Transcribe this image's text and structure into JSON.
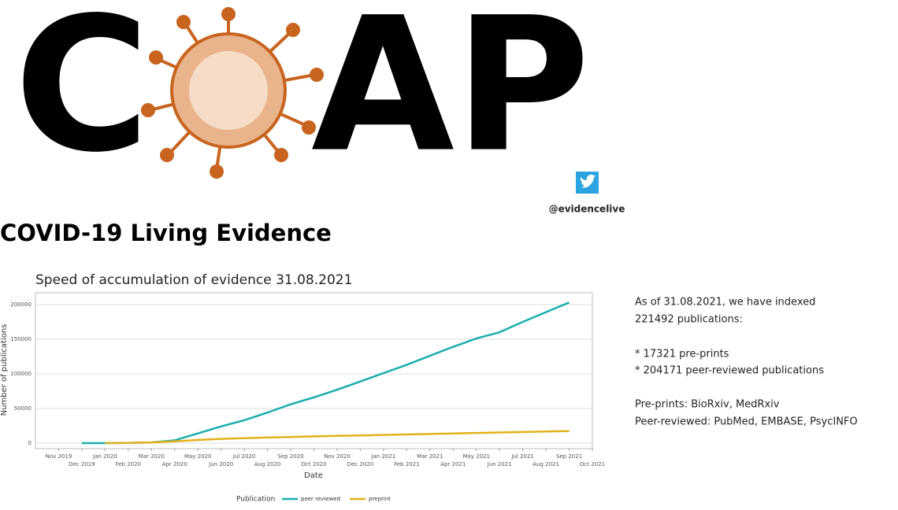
{
  "logo": {
    "left": "C",
    "right": "AP",
    "handle": "@evidencelive"
  },
  "page_title": "COVID-19 Living Evidence",
  "chart_data": {
    "type": "line",
    "title": "Speed of accumulation of evidence 31.08.2021",
    "x_label": "Date",
    "y_label": "Number of publications",
    "legend_title": "Publication",
    "x": [
      "2019-12",
      "2020-01",
      "2020-02",
      "2020-03",
      "2020-04",
      "2020-05",
      "2020-06",
      "2020-07",
      "2020-08",
      "2020-09",
      "2020-10",
      "2020-11",
      "2020-12",
      "2021-01",
      "2021-02",
      "2021-03",
      "2021-04",
      "2021-05",
      "2021-06",
      "2021-07",
      "2021-08",
      "2021-09"
    ],
    "series": [
      {
        "name": "peer reviewed",
        "color": "#1aaeb0",
        "values": [
          0,
          0,
          300,
          1000,
          4000,
          14000,
          24000,
          33000,
          44000,
          56000,
          66000,
          77000,
          89000,
          101000,
          113000,
          126000,
          139000,
          151000,
          160000,
          175000,
          189000,
          203000
        ]
      },
      {
        "name": "preprint",
        "color": "#e2b11a",
        "values": [
          null,
          0,
          300,
          1000,
          2500,
          4500,
          6000,
          7000,
          8000,
          8800,
          9600,
          10400,
          11100,
          11800,
          12500,
          13200,
          13900,
          14600,
          15300,
          16000,
          16700,
          17300
        ]
      }
    ],
    "xlim": [
      "2019-10",
      "2021-10"
    ],
    "xticks": [
      {
        "value": "2019-11",
        "label": "Nov 2019"
      },
      {
        "value": "2019-12",
        "label": "Dec 2019"
      },
      {
        "value": "2020-01",
        "label": "Jan 2020"
      },
      {
        "value": "2020-02",
        "label": "Feb 2020"
      },
      {
        "value": "2020-03",
        "label": "Mar 2020"
      },
      {
        "value": "2020-04",
        "label": "Apr 2020"
      },
      {
        "value": "2020-05",
        "label": "May 2020"
      },
      {
        "value": "2020-06",
        "label": "Jun 2020"
      },
      {
        "value": "2020-07",
        "label": "Jul 2020"
      },
      {
        "value": "2020-08",
        "label": "Aug 2020"
      },
      {
        "value": "2020-09",
        "label": "Sep 2020"
      },
      {
        "value": "2020-10",
        "label": "Oct 2020"
      },
      {
        "value": "2020-11",
        "label": "Nov 2020"
      },
      {
        "value": "2020-12",
        "label": "Dec 2020"
      },
      {
        "value": "2021-01",
        "label": "Jan 2021"
      },
      {
        "value": "2021-02",
        "label": "Feb 2021"
      },
      {
        "value": "2021-03",
        "label": "Mar 2021"
      },
      {
        "value": "2021-04",
        "label": "Apr 2021"
      },
      {
        "value": "2021-05",
        "label": "May 2021"
      },
      {
        "value": "2021-06",
        "label": "Jun 2021"
      },
      {
        "value": "2021-07",
        "label": "Jul 2021"
      },
      {
        "value": "2021-08",
        "label": "Aug 2021"
      },
      {
        "value": "2021-09",
        "label": "Sep 2021"
      },
      {
        "value": "2021-10",
        "label": "Oct 2021"
      }
    ],
    "ylim": [
      -8000,
      217000
    ],
    "yticks": [
      0,
      50000,
      100000,
      150000,
      200000
    ],
    "grid": true
  },
  "info": [
    "As of 31.08.2021, we have indexed",
    "221492 publications:",
    "* 17321 pre-prints",
    "* 204171 peer-reviewed publications",
    "Pre-prints: BioRxiv, MedRxiv",
    "Peer-reviewed: PubMed, EMBASE, PsycINFO"
  ]
}
